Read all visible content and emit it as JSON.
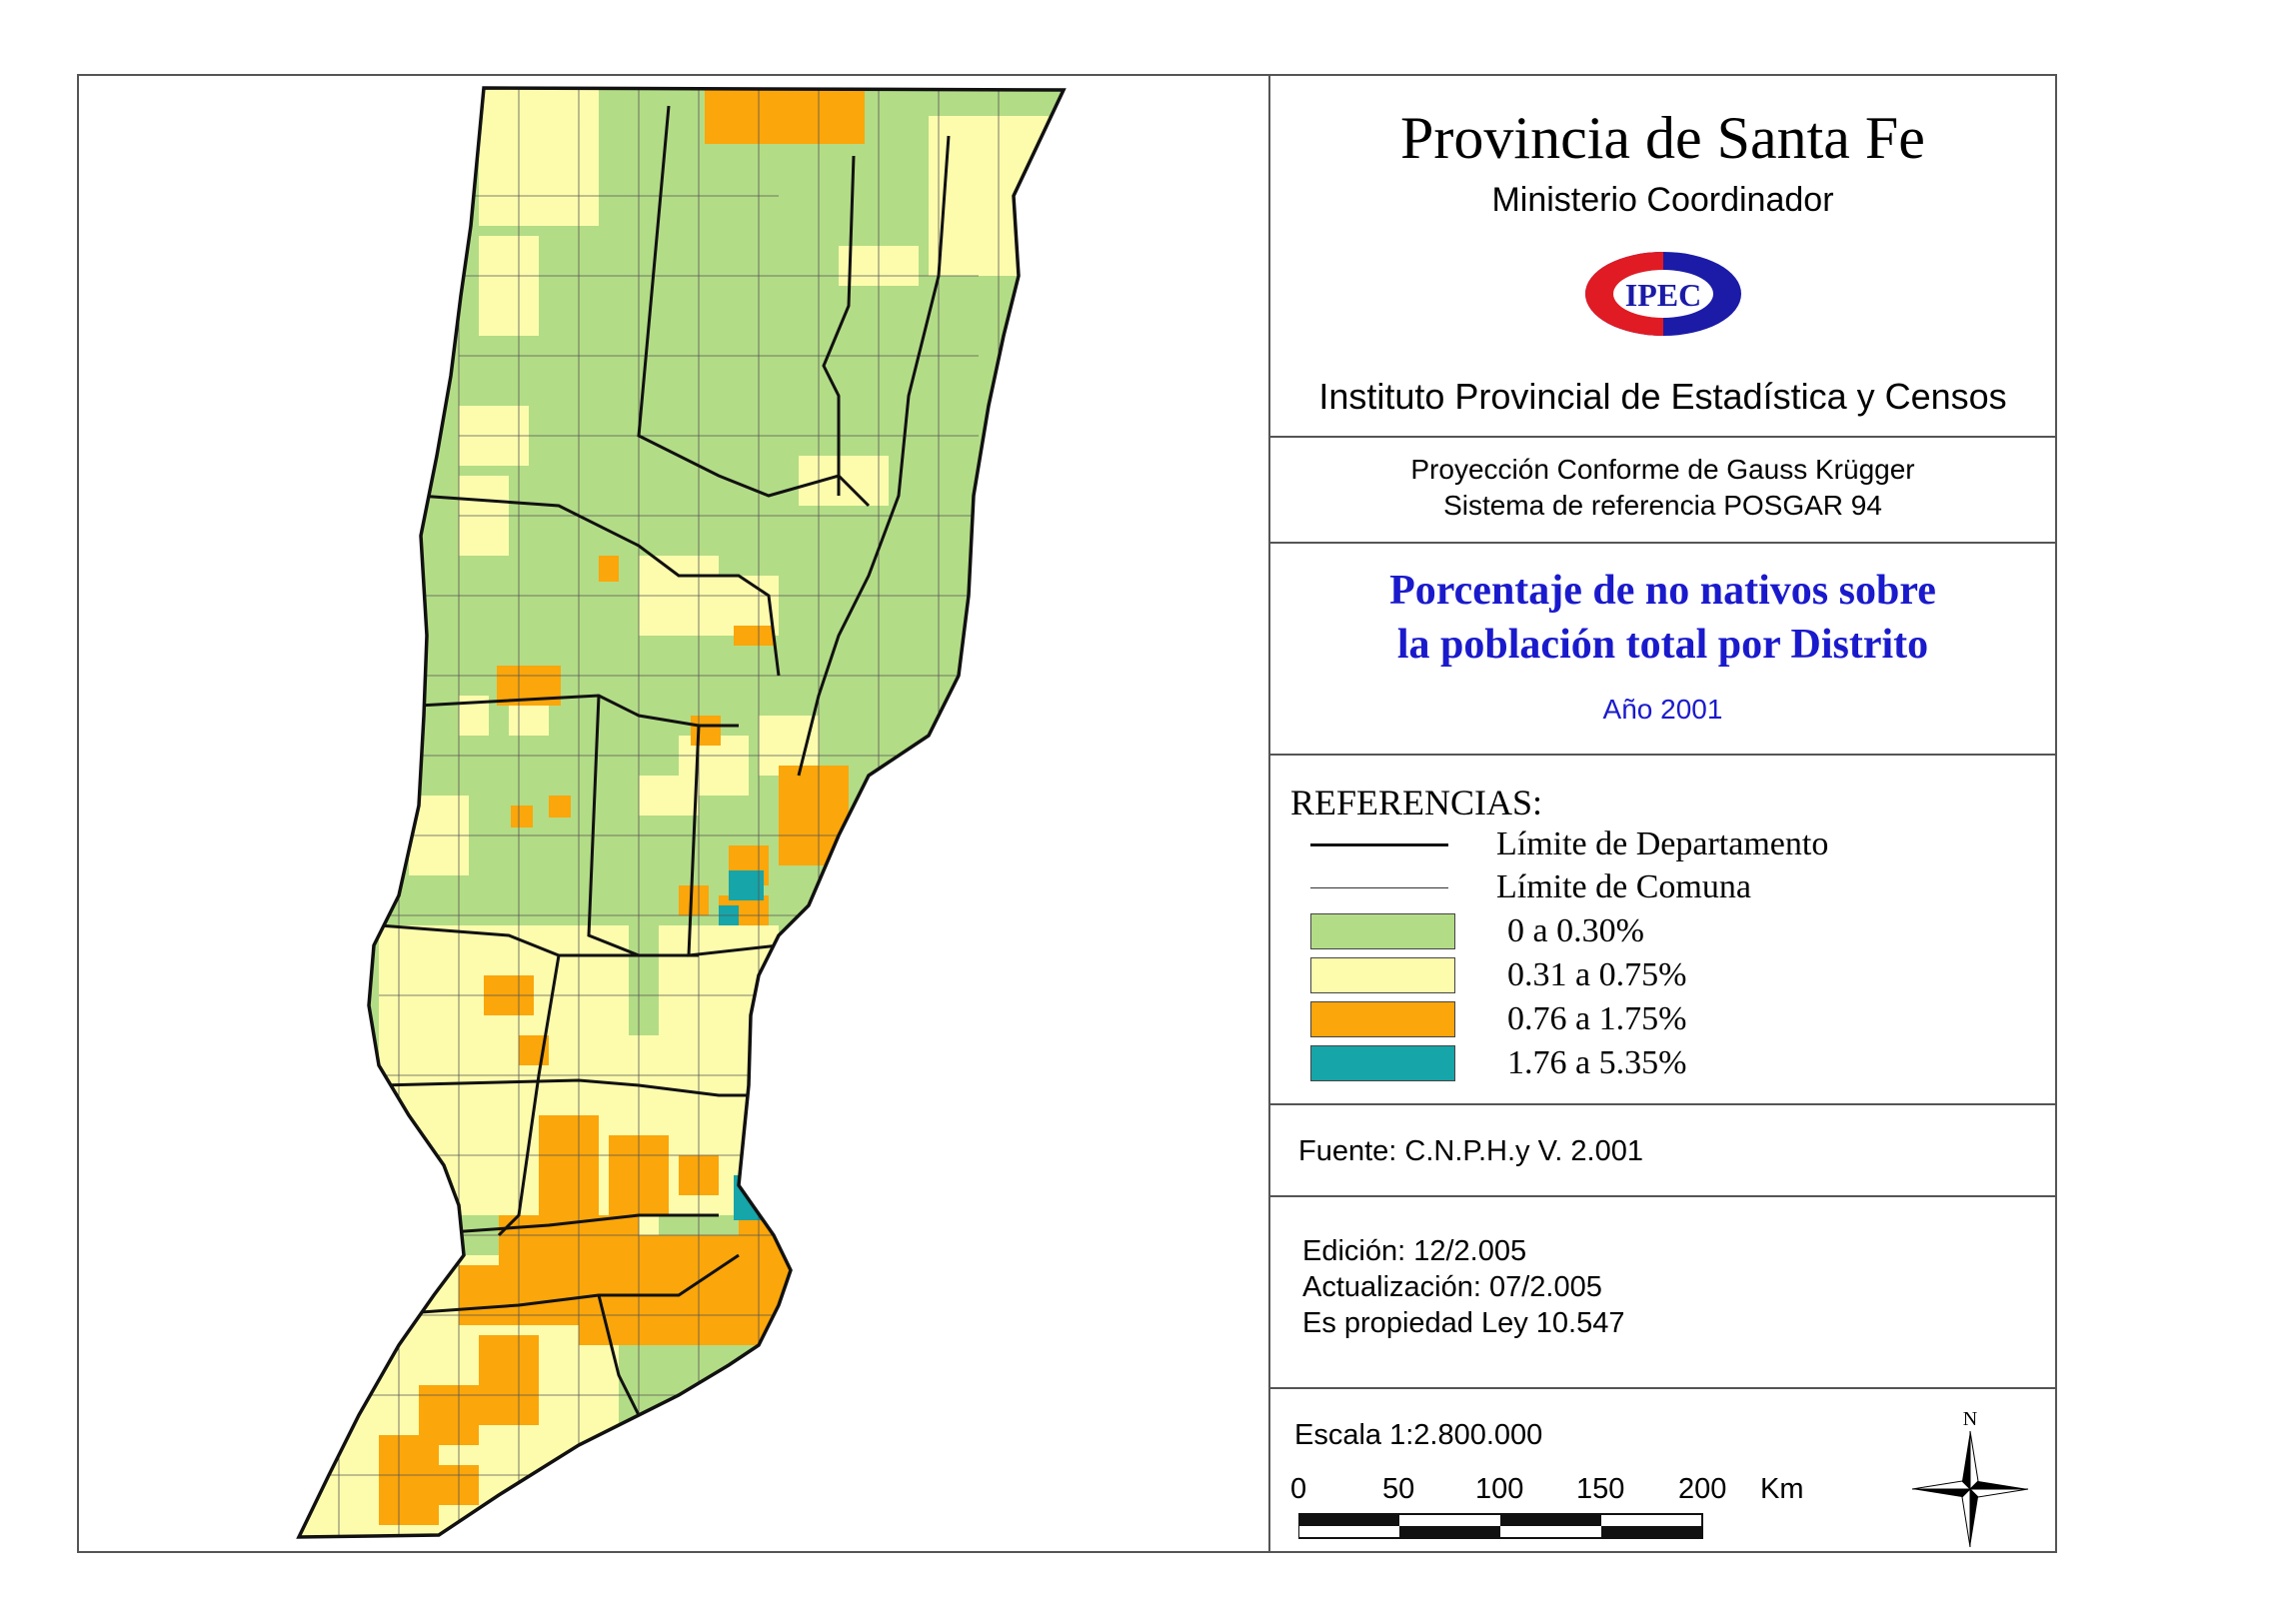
{
  "header": {
    "title": "Provincia de Santa Fe",
    "ministry": "Ministerio Coordinador",
    "logo_text": "IPEC",
    "institute": "Instituto Provincial de Estadística y Censos"
  },
  "projection": {
    "line1": "Proyección Conforme de Gauss Krügger",
    "line2": "Sistema de referencia POSGAR 94"
  },
  "theme": {
    "line1": "Porcentaje de no nativos sobre",
    "line2": "la población total  por Distrito",
    "year": "Año 2001"
  },
  "legend": {
    "title": "REFERENCIAS:",
    "dept_limit": "Límite de Departamento",
    "comuna_limit": "Límite de Comuna",
    "classes": [
      {
        "label": "0 a 0.30%",
        "color": "#b3dc86"
      },
      {
        "label": "0.31 a 0.75%",
        "color": "#fdfcad"
      },
      {
        "label": "0.76 a 1.75%",
        "color": "#fba60a"
      },
      {
        "label": "1.76 a 5.35%",
        "color": "#16a5a9"
      }
    ]
  },
  "source": "Fuente:  C.N.P.H.y V. 2.001",
  "edition": {
    "edicion": "Edición:  12/2.005",
    "actualizacion": "Actualización:  07/2.005",
    "propiedad": "Es propiedad Ley 10.547"
  },
  "scale": {
    "text": "Escala 1:2.800.000",
    "ticks": [
      "0",
      "50",
      "100",
      "150",
      "200"
    ],
    "unit": "Km",
    "north": "N"
  }
}
